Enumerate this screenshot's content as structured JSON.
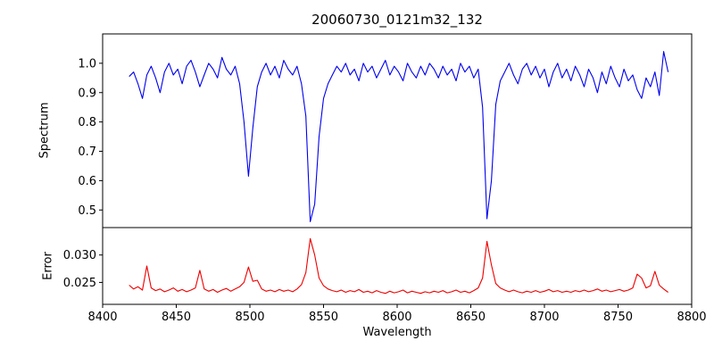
{
  "title": "20060730_0121m32_132",
  "xlabel": "Wavelength",
  "chart_data": [
    {
      "type": "line",
      "name": "spectrum",
      "ylabel": "Spectrum",
      "color": "#0000ee",
      "xlim": [
        8400,
        8800
      ],
      "ylim": [
        0.44,
        1.1
      ],
      "ytick_values": [
        0.5,
        0.6,
        0.7,
        0.8,
        0.9,
        1.0
      ],
      "ytick_labels": [
        "0.5",
        "0.6",
        "0.7",
        "0.8",
        "0.9",
        "1.0"
      ],
      "x_start": 8418,
      "x_step": 3,
      "absorption_lines": [
        {
          "center": 8498,
          "depth": 0.615
        },
        {
          "center": 8542,
          "depth": 0.46
        },
        {
          "center": 8662,
          "depth": 0.47
        }
      ],
      "y": [
        0.955,
        0.97,
        0.93,
        0.88,
        0.96,
        0.99,
        0.95,
        0.9,
        0.97,
        1.0,
        0.96,
        0.98,
        0.93,
        0.99,
        1.01,
        0.97,
        0.92,
        0.96,
        1.0,
        0.98,
        0.95,
        1.02,
        0.98,
        0.96,
        0.99,
        0.93,
        0.8,
        0.615,
        0.78,
        0.92,
        0.97,
        1.0,
        0.96,
        0.99,
        0.95,
        1.01,
        0.98,
        0.96,
        0.99,
        0.93,
        0.82,
        0.46,
        0.52,
        0.75,
        0.88,
        0.93,
        0.96,
        0.99,
        0.97,
        1.0,
        0.96,
        0.98,
        0.94,
        1.0,
        0.97,
        0.99,
        0.95,
        0.98,
        1.01,
        0.96,
        0.99,
        0.97,
        0.94,
        1.0,
        0.97,
        0.95,
        0.99,
        0.96,
        1.0,
        0.98,
        0.95,
        0.99,
        0.96,
        0.98,
        0.94,
        1.0,
        0.97,
        0.99,
        0.95,
        0.98,
        0.85,
        0.47,
        0.6,
        0.86,
        0.94,
        0.97,
        1.0,
        0.96,
        0.93,
        0.98,
        1.0,
        0.96,
        0.99,
        0.95,
        0.98,
        0.92,
        0.97,
        1.0,
        0.95,
        0.98,
        0.94,
        0.99,
        0.96,
        0.92,
        0.98,
        0.95,
        0.9,
        0.97,
        0.93,
        0.99,
        0.95,
        0.92,
        0.98,
        0.94,
        0.96,
        0.91,
        0.88,
        0.95,
        0.92,
        0.97,
        0.89,
        1.04,
        0.97
      ]
    },
    {
      "type": "line",
      "name": "error",
      "ylabel": "Error",
      "color": "#ee0000",
      "xlim": [
        8400,
        8800
      ],
      "ylim": [
        0.021,
        0.035
      ],
      "ytick_values": [
        0.025,
        0.03
      ],
      "ytick_labels": [
        "0.025",
        "0.030"
      ],
      "xtick_values": [
        8400,
        8450,
        8500,
        8550,
        8600,
        8650,
        8700,
        8750,
        8800
      ],
      "xtick_labels": [
        "8400",
        "8450",
        "8500",
        "8550",
        "8600",
        "8650",
        "8700",
        "8750",
        "8800"
      ],
      "x_start": 8418,
      "x_step": 3,
      "y": [
        0.0245,
        0.0238,
        0.0242,
        0.0236,
        0.028,
        0.024,
        0.0235,
        0.0238,
        0.0233,
        0.0236,
        0.024,
        0.0234,
        0.0237,
        0.0233,
        0.0236,
        0.024,
        0.0272,
        0.0238,
        0.0234,
        0.0237,
        0.0232,
        0.0236,
        0.0239,
        0.0234,
        0.0238,
        0.0242,
        0.025,
        0.0278,
        0.0252,
        0.0254,
        0.0238,
        0.0234,
        0.0236,
        0.0233,
        0.0237,
        0.0234,
        0.0236,
        0.0233,
        0.0238,
        0.0246,
        0.0268,
        0.033,
        0.03,
        0.0258,
        0.0244,
        0.0238,
        0.0235,
        0.0233,
        0.0236,
        0.0232,
        0.0235,
        0.0233,
        0.0237,
        0.0232,
        0.0234,
        0.0231,
        0.0235,
        0.0232,
        0.023,
        0.0234,
        0.0231,
        0.0233,
        0.0236,
        0.0231,
        0.0234,
        0.0232,
        0.023,
        0.0233,
        0.0231,
        0.0234,
        0.0232,
        0.0235,
        0.0231,
        0.0233,
        0.0236,
        0.0232,
        0.0234,
        0.0231,
        0.0235,
        0.024,
        0.0258,
        0.0325,
        0.0282,
        0.0248,
        0.024,
        0.0236,
        0.0233,
        0.0236,
        0.0233,
        0.0231,
        0.0234,
        0.0232,
        0.0235,
        0.0232,
        0.0234,
        0.0237,
        0.0233,
        0.0235,
        0.0232,
        0.0234,
        0.0232,
        0.0235,
        0.0233,
        0.0236,
        0.0233,
        0.0235,
        0.0238,
        0.0234,
        0.0236,
        0.0233,
        0.0235,
        0.0237,
        0.0234,
        0.0236,
        0.024,
        0.0265,
        0.0258,
        0.024,
        0.0244,
        0.027,
        0.0245,
        0.0238,
        0.0232
      ]
    }
  ]
}
